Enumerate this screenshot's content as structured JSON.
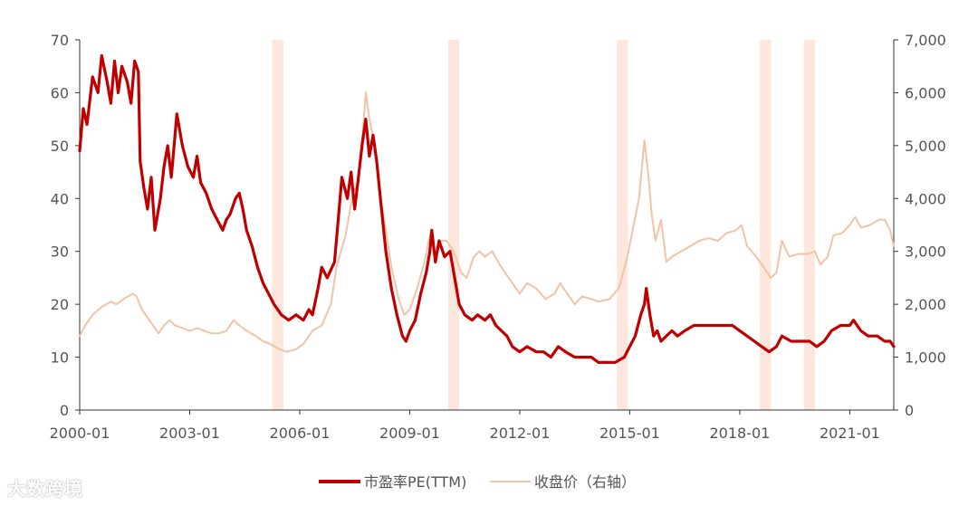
{
  "chart_data": {
    "type": "line",
    "title": "",
    "xlabel": "",
    "ylabel": "",
    "y2label": "",
    "x_tick_labels": [
      "2000-01",
      "2003-01",
      "2006-01",
      "2009-01",
      "2012-01",
      "2015-01",
      "2018-01",
      "2021-01"
    ],
    "x_tick_values": [
      2000.0,
      2003.0,
      2006.0,
      2009.0,
      2012.0,
      2015.0,
      2018.0,
      2021.0
    ],
    "xlim": [
      2000.0,
      2022.2
    ],
    "ylim_left": [
      0,
      70
    ],
    "ylim_right": [
      0,
      7000
    ],
    "left_ticks": [
      "0",
      "10",
      "20",
      "30",
      "40",
      "50",
      "60",
      "70"
    ],
    "right_ticks": [
      "0",
      "1,000",
      "2,000",
      "3,000",
      "4,000",
      "5,000",
      "6,000",
      "7,000"
    ],
    "highlight_bands": [
      [
        2005.25,
        2005.55
      ],
      [
        2010.05,
        2010.35
      ],
      [
        2014.65,
        2014.95
      ],
      [
        2018.55,
        2018.85
      ],
      [
        2019.75,
        2020.05
      ]
    ],
    "series": [
      {
        "name": "市盈率PE(TTM)",
        "axis": "left",
        "color": "#c00000",
        "points": [
          [
            2000.0,
            49
          ],
          [
            2000.1,
            57
          ],
          [
            2000.2,
            54
          ],
          [
            2000.35,
            63
          ],
          [
            2000.5,
            60
          ],
          [
            2000.6,
            67
          ],
          [
            2000.75,
            62
          ],
          [
            2000.85,
            58
          ],
          [
            2000.95,
            66
          ],
          [
            2001.05,
            60
          ],
          [
            2001.15,
            65
          ],
          [
            2001.3,
            62
          ],
          [
            2001.4,
            58
          ],
          [
            2001.5,
            66
          ],
          [
            2001.6,
            64
          ],
          [
            2001.65,
            47
          ],
          [
            2001.75,
            42
          ],
          [
            2001.85,
            38
          ],
          [
            2001.95,
            44
          ],
          [
            2002.05,
            34
          ],
          [
            2002.2,
            40
          ],
          [
            2002.3,
            46
          ],
          [
            2002.4,
            50
          ],
          [
            2002.5,
            44
          ],
          [
            2002.6,
            52
          ],
          [
            2002.65,
            56
          ],
          [
            2002.8,
            50
          ],
          [
            2002.95,
            46
          ],
          [
            2003.1,
            44
          ],
          [
            2003.2,
            48
          ],
          [
            2003.3,
            43
          ],
          [
            2003.45,
            41
          ],
          [
            2003.6,
            38
          ],
          [
            2003.75,
            36
          ],
          [
            2003.9,
            34
          ],
          [
            2004.0,
            36
          ],
          [
            2004.1,
            37
          ],
          [
            2004.25,
            40
          ],
          [
            2004.35,
            41
          ],
          [
            2004.45,
            38
          ],
          [
            2004.55,
            34
          ],
          [
            2004.7,
            31
          ],
          [
            2004.85,
            27
          ],
          [
            2005.0,
            24
          ],
          [
            2005.15,
            22
          ],
          [
            2005.3,
            20
          ],
          [
            2005.5,
            18
          ],
          [
            2005.7,
            17
          ],
          [
            2005.9,
            18
          ],
          [
            2006.1,
            17
          ],
          [
            2006.25,
            19
          ],
          [
            2006.35,
            18
          ],
          [
            2006.5,
            23
          ],
          [
            2006.6,
            27
          ],
          [
            2006.75,
            25
          ],
          [
            2006.95,
            28
          ],
          [
            2007.05,
            36
          ],
          [
            2007.15,
            44
          ],
          [
            2007.3,
            40
          ],
          [
            2007.4,
            45
          ],
          [
            2007.5,
            38
          ],
          [
            2007.6,
            44
          ],
          [
            2007.7,
            50
          ],
          [
            2007.8,
            55
          ],
          [
            2007.9,
            48
          ],
          [
            2008.0,
            52
          ],
          [
            2008.1,
            47
          ],
          [
            2008.2,
            40
          ],
          [
            2008.35,
            30
          ],
          [
            2008.5,
            23
          ],
          [
            2008.65,
            18
          ],
          [
            2008.8,
            14
          ],
          [
            2008.9,
            13
          ],
          [
            2009.0,
            15
          ],
          [
            2009.15,
            17
          ],
          [
            2009.3,
            22
          ],
          [
            2009.45,
            26
          ],
          [
            2009.55,
            30
          ],
          [
            2009.6,
            34
          ],
          [
            2009.7,
            28
          ],
          [
            2009.8,
            32
          ],
          [
            2009.95,
            29
          ],
          [
            2010.1,
            30
          ],
          [
            2010.25,
            24
          ],
          [
            2010.35,
            20
          ],
          [
            2010.5,
            18
          ],
          [
            2010.7,
            17
          ],
          [
            2010.85,
            18
          ],
          [
            2011.05,
            17
          ],
          [
            2011.2,
            18
          ],
          [
            2011.35,
            16
          ],
          [
            2011.5,
            15
          ],
          [
            2011.65,
            14
          ],
          [
            2011.8,
            12
          ],
          [
            2012.0,
            11
          ],
          [
            2012.2,
            12
          ],
          [
            2012.45,
            11
          ],
          [
            2012.65,
            11
          ],
          [
            2012.85,
            10
          ],
          [
            2013.05,
            12
          ],
          [
            2013.25,
            11
          ],
          [
            2013.5,
            10
          ],
          [
            2013.7,
            10
          ],
          [
            2013.95,
            10
          ],
          [
            2014.15,
            9
          ],
          [
            2014.4,
            9
          ],
          [
            2014.6,
            9
          ],
          [
            2014.85,
            10
          ],
          [
            2015.0,
            12
          ],
          [
            2015.15,
            14
          ],
          [
            2015.3,
            18
          ],
          [
            2015.4,
            20
          ],
          [
            2015.45,
            23
          ],
          [
            2015.55,
            18
          ],
          [
            2015.65,
            14
          ],
          [
            2015.75,
            15
          ],
          [
            2015.85,
            13
          ],
          [
            2016.0,
            14
          ],
          [
            2016.15,
            15
          ],
          [
            2016.3,
            14
          ],
          [
            2016.5,
            15
          ],
          [
            2016.75,
            16
          ],
          [
            2017.0,
            16
          ],
          [
            2017.25,
            16
          ],
          [
            2017.5,
            16
          ],
          [
            2017.8,
            16
          ],
          [
            2018.0,
            15
          ],
          [
            2018.2,
            14
          ],
          [
            2018.4,
            13
          ],
          [
            2018.6,
            12
          ],
          [
            2018.8,
            11
          ],
          [
            2019.0,
            12
          ],
          [
            2019.15,
            14
          ],
          [
            2019.4,
            13
          ],
          [
            2019.7,
            13
          ],
          [
            2019.9,
            13
          ],
          [
            2020.1,
            12
          ],
          [
            2020.3,
            13
          ],
          [
            2020.5,
            15
          ],
          [
            2020.75,
            16
          ],
          [
            2021.0,
            16
          ],
          [
            2021.1,
            17
          ],
          [
            2021.3,
            15
          ],
          [
            2021.5,
            14
          ],
          [
            2021.75,
            14
          ],
          [
            2021.95,
            13
          ],
          [
            2022.1,
            13
          ],
          [
            2022.2,
            12
          ]
        ]
      },
      {
        "name": "收盘价（右轴）",
        "axis": "right",
        "color": "#f2c3a6",
        "points": [
          [
            2000.0,
            1400
          ],
          [
            2000.15,
            1600
          ],
          [
            2000.35,
            1800
          ],
          [
            2000.6,
            1950
          ],
          [
            2000.85,
            2050
          ],
          [
            2001.0,
            2000
          ],
          [
            2001.2,
            2100
          ],
          [
            2001.45,
            2200
          ],
          [
            2001.55,
            2150
          ],
          [
            2001.7,
            1900
          ],
          [
            2001.85,
            1750
          ],
          [
            2002.0,
            1600
          ],
          [
            2002.15,
            1450
          ],
          [
            2002.3,
            1600
          ],
          [
            2002.45,
            1700
          ],
          [
            2002.6,
            1600
          ],
          [
            2002.8,
            1550
          ],
          [
            2003.0,
            1500
          ],
          [
            2003.2,
            1550
          ],
          [
            2003.4,
            1500
          ],
          [
            2003.6,
            1450
          ],
          [
            2003.8,
            1450
          ],
          [
            2004.0,
            1500
          ],
          [
            2004.2,
            1700
          ],
          [
            2004.35,
            1600
          ],
          [
            2004.55,
            1500
          ],
          [
            2004.8,
            1400
          ],
          [
            2005.0,
            1300
          ],
          [
            2005.2,
            1250
          ],
          [
            2005.45,
            1150
          ],
          [
            2005.65,
            1100
          ],
          [
            2005.9,
            1150
          ],
          [
            2006.1,
            1250
          ],
          [
            2006.35,
            1500
          ],
          [
            2006.6,
            1600
          ],
          [
            2006.85,
            2000
          ],
          [
            2007.0,
            2700
          ],
          [
            2007.25,
            3300
          ],
          [
            2007.45,
            4100
          ],
          [
            2007.6,
            4300
          ],
          [
            2007.75,
            5500
          ],
          [
            2007.8,
            6000
          ],
          [
            2007.9,
            5500
          ],
          [
            2008.05,
            5000
          ],
          [
            2008.2,
            4000
          ],
          [
            2008.35,
            3400
          ],
          [
            2008.5,
            2700
          ],
          [
            2008.7,
            2100
          ],
          [
            2008.85,
            1800
          ],
          [
            2009.0,
            1900
          ],
          [
            2009.2,
            2300
          ],
          [
            2009.4,
            2800
          ],
          [
            2009.55,
            3300
          ],
          [
            2009.7,
            2900
          ],
          [
            2009.85,
            3200
          ],
          [
            2010.0,
            3200
          ],
          [
            2010.2,
            3000
          ],
          [
            2010.4,
            2600
          ],
          [
            2010.55,
            2500
          ],
          [
            2010.75,
            2900
          ],
          [
            2010.9,
            3000
          ],
          [
            2011.05,
            2900
          ],
          [
            2011.25,
            3000
          ],
          [
            2011.45,
            2750
          ],
          [
            2011.6,
            2600
          ],
          [
            2011.8,
            2400
          ],
          [
            2012.0,
            2200
          ],
          [
            2012.2,
            2400
          ],
          [
            2012.45,
            2300
          ],
          [
            2012.7,
            2100
          ],
          [
            2012.95,
            2200
          ],
          [
            2013.1,
            2400
          ],
          [
            2013.3,
            2200
          ],
          [
            2013.5,
            2000
          ],
          [
            2013.7,
            2150
          ],
          [
            2013.95,
            2100
          ],
          [
            2014.15,
            2050
          ],
          [
            2014.45,
            2100
          ],
          [
            2014.7,
            2300
          ],
          [
            2014.9,
            2800
          ],
          [
            2015.05,
            3300
          ],
          [
            2015.25,
            4000
          ],
          [
            2015.4,
            5100
          ],
          [
            2015.5,
            4500
          ],
          [
            2015.6,
            3700
          ],
          [
            2015.7,
            3200
          ],
          [
            2015.85,
            3600
          ],
          [
            2016.0,
            2800
          ],
          [
            2016.15,
            2900
          ],
          [
            2016.4,
            3000
          ],
          [
            2016.65,
            3100
          ],
          [
            2016.9,
            3200
          ],
          [
            2017.15,
            3250
          ],
          [
            2017.4,
            3200
          ],
          [
            2017.65,
            3350
          ],
          [
            2017.9,
            3400
          ],
          [
            2018.05,
            3500
          ],
          [
            2018.2,
            3100
          ],
          [
            2018.45,
            2900
          ],
          [
            2018.65,
            2700
          ],
          [
            2018.85,
            2500
          ],
          [
            2019.0,
            2600
          ],
          [
            2019.15,
            3200
          ],
          [
            2019.35,
            2900
          ],
          [
            2019.6,
            2950
          ],
          [
            2019.85,
            2950
          ],
          [
            2020.05,
            3000
          ],
          [
            2020.2,
            2750
          ],
          [
            2020.4,
            2900
          ],
          [
            2020.55,
            3300
          ],
          [
            2020.8,
            3350
          ],
          [
            2021.0,
            3500
          ],
          [
            2021.15,
            3650
          ],
          [
            2021.3,
            3450
          ],
          [
            2021.55,
            3500
          ],
          [
            2021.8,
            3600
          ],
          [
            2021.95,
            3600
          ],
          [
            2022.1,
            3400
          ],
          [
            2022.2,
            3100
          ]
        ]
      }
    ],
    "legend_position": "bottom-center"
  },
  "watermark_text": "大数跨境"
}
